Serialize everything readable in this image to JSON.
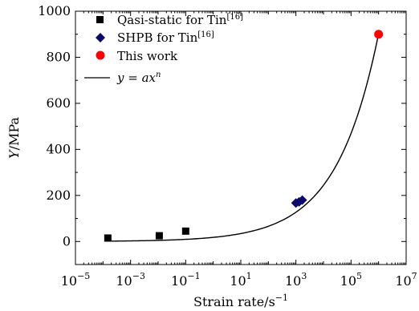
{
  "chart_data": {
    "type": "scatter",
    "xlabel": "Strain rate/s",
    "xlabel_exponent": "−1",
    "ylabel_italic": "Y",
    "ylabel_rest": "/MPa",
    "x_scale": "log",
    "xlim": [
      1e-05,
      10000000.0
    ],
    "ylim": [
      -100,
      1000
    ],
    "y_ticks": [
      0,
      200,
      400,
      600,
      800,
      1000
    ],
    "y_tick_labels": [
      "0",
      "200",
      "400",
      "600",
      "800",
      "1000"
    ],
    "x_ticks": [
      1e-05,
      0.001,
      0.1,
      10,
      1000,
      100000,
      10000000.0
    ],
    "x_tick_labels": [
      {
        "base": "10",
        "exp": "−5"
      },
      {
        "base": "10",
        "exp": "−3"
      },
      {
        "base": "10",
        "exp": "−1"
      },
      {
        "base": "10",
        "exp": "1"
      },
      {
        "base": "10",
        "exp": "3"
      },
      {
        "base": "10",
        "exp": "5"
      },
      {
        "base": "10",
        "exp": "7"
      }
    ],
    "grid": false,
    "legend_position": "top-left",
    "series": [
      {
        "name": "Qasi-static for Tin",
        "ref": "[16]",
        "marker": "square",
        "color": "#000000",
        "x": [
          0.00015,
          0.011,
          0.1
        ],
        "y": [
          15,
          25,
          45
        ]
      },
      {
        "name": "SHPB for Tin",
        "ref": "[16]",
        "marker": "diamond",
        "color": "#0a0a6e",
        "x": [
          1000,
          1300,
          1700
        ],
        "y": [
          167,
          172,
          180
        ]
      },
      {
        "name": "This work",
        "marker": "circle",
        "color": "#ff0000",
        "x": [
          1000000
        ],
        "y": [
          900
        ]
      },
      {
        "name": "y = ax",
        "name_exponent": "n",
        "marker": "line",
        "color": "#000000",
        "fit": {
          "a": 17.89,
          "n": 0.2838
        },
        "x_range": [
          0.00012,
          1000000
        ]
      }
    ]
  }
}
